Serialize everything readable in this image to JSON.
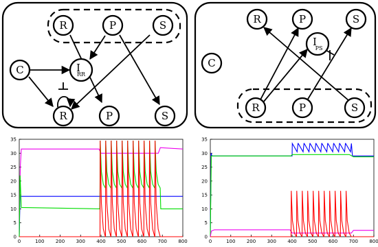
{
  "diagram_left": {
    "nodes": {
      "R_top": "R",
      "P_top": "P",
      "S_top": "S",
      "C": "C",
      "I": "I",
      "I_sub": "RR",
      "R_bot": "R",
      "P_bot": "P",
      "S_bot": "S"
    }
  },
  "diagram_right": {
    "nodes": {
      "R_top": "R",
      "P_top": "P",
      "S_top": "S",
      "C": "C",
      "I": "I",
      "I_sub": "PS",
      "R_bot": "R",
      "P_bot": "P",
      "S_bot": "S"
    }
  },
  "colors": {
    "red": "#ff0000",
    "green": "#00dd00",
    "blue": "#0000ff",
    "magenta": "#ee00ee"
  },
  "chart_data": [
    {
      "type": "line",
      "xlim": [
        0,
        800
      ],
      "ylim": [
        0,
        35
      ],
      "xticks": [
        "0",
        "100",
        "200",
        "300",
        "400",
        "500",
        "600",
        "700",
        "800"
      ],
      "yticks": [
        "0",
        "5",
        "10",
        "15",
        "20",
        "25",
        "30",
        "35"
      ],
      "series": [
        {
          "color": "magenta",
          "points": [
            [
              0,
              0
            ],
            [
              5,
              25
            ],
            [
              10,
              31.5
            ],
            [
              390,
              31.5
            ],
            [
              400,
              30
            ],
            [
              680,
              30
            ],
            [
              690,
              32
            ],
            [
              800,
              31.5
            ]
          ]
        },
        {
          "color": "blue",
          "points": [
            [
              0,
              0
            ],
            [
              4,
              14.5
            ],
            [
              800,
              14.5
            ]
          ]
        },
        {
          "color": "green",
          "baseline": 10,
          "spike_base": 17.5,
          "spike_peak": 34.5,
          "spike_window": [
            395,
            690
          ],
          "spike_count": 11,
          "initial_transient": [
            [
              0,
              0
            ],
            [
              4,
              22
            ],
            [
              10,
              10.5
            ]
          ]
        },
        {
          "color": "red",
          "baseline": 0,
          "spike_peak": 34.5,
          "spike_window": [
            395,
            690
          ],
          "spike_count": 11
        }
      ]
    },
    {
      "type": "line",
      "xlim": [
        0,
        800
      ],
      "ylim": [
        0,
        35
      ],
      "xticks": [
        "0",
        "100",
        "200",
        "300",
        "400",
        "500",
        "600",
        "700",
        "800"
      ],
      "yticks": [
        "0",
        "5",
        "10",
        "15",
        "20",
        "25",
        "30",
        "35"
      ],
      "series": [
        {
          "color": "blue",
          "baseline": 29,
          "osc_window": [
            400,
            690
          ],
          "osc_low": 30.5,
          "osc_high": 33.5,
          "osc_count": 10
        },
        {
          "color": "green",
          "points": [
            [
              0,
              0
            ],
            [
              5,
              29
            ],
            [
              395,
              29
            ],
            [
              400,
              29.5
            ],
            [
              680,
              29.5
            ],
            [
              700,
              28.7
            ],
            [
              800,
              28.7
            ]
          ]
        },
        {
          "color": "magenta",
          "points": [
            [
              0,
              0
            ],
            [
              5,
              2
            ],
            [
              20,
              2.5
            ],
            [
              390,
              2.5
            ],
            [
              400,
              1.3
            ],
            [
              690,
              1.3
            ],
            [
              700,
              2.3
            ],
            [
              800,
              2.3
            ]
          ]
        },
        {
          "color": "red",
          "baseline": 0,
          "spike_peak": 16.5,
          "spike_window": [
            395,
            690
          ],
          "spike_count": 11
        }
      ]
    }
  ]
}
